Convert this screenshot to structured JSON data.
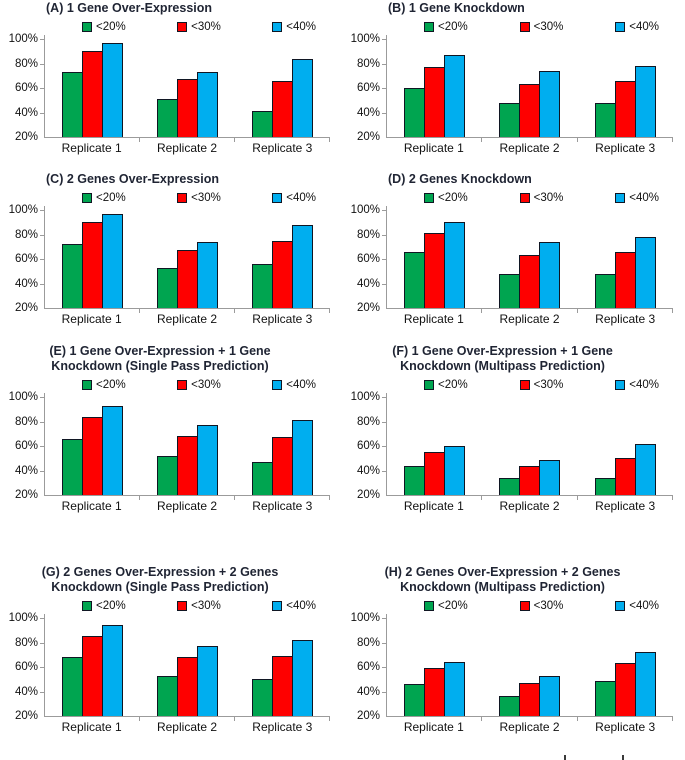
{
  "figure": {
    "background": "#ffffff",
    "axis_color": "#9b9b9b",
    "bar_border_color": "#101623",
    "title_color": "#1f2433",
    "text_color": "#111111"
  },
  "chart_data": [
    {
      "type": "bar",
      "id": "A",
      "title_lines": [
        "(A) 1 Gene Over-Expression"
      ],
      "categories": [
        "Replicate 1",
        "Replicate 2",
        "Replicate 3"
      ],
      "series": [
        {
          "name": "<20%",
          "color": "#00A550",
          "values": [
            73,
            51,
            41
          ]
        },
        {
          "name": "<30%",
          "color": "#FE0000",
          "values": [
            90,
            67,
            66
          ]
        },
        {
          "name": "<40%",
          "color": "#00AEEF",
          "values": [
            97,
            73,
            84
          ]
        }
      ],
      "ylim": [
        20,
        100
      ],
      "yticks": [
        "100%",
        "80%",
        "60%",
        "40%",
        "20%"
      ],
      "legend_position": "top",
      "grid": false
    },
    {
      "type": "bar",
      "id": "B",
      "title_lines": [
        "(B) 1 Gene Knockdown"
      ],
      "categories": [
        "Replicate 1",
        "Replicate 2",
        "Replicate 3"
      ],
      "series": [
        {
          "name": "<20%",
          "color": "#00A550",
          "values": [
            60,
            48,
            48
          ]
        },
        {
          "name": "<30%",
          "color": "#FE0000",
          "values": [
            77,
            63,
            66
          ]
        },
        {
          "name": "<40%",
          "color": "#00AEEF",
          "values": [
            87,
            74,
            78
          ]
        }
      ],
      "ylim": [
        20,
        100
      ],
      "yticks": [
        "100%",
        "80%",
        "60%",
        "40%",
        "20%"
      ],
      "legend_position": "top",
      "grid": false
    },
    {
      "type": "bar",
      "id": "C",
      "title_lines": [
        "(C) 2 Genes Over-Expression"
      ],
      "categories": [
        "Replicate 1",
        "Replicate 2",
        "Replicate 3"
      ],
      "series": [
        {
          "name": "<20%",
          "color": "#00A550",
          "values": [
            72,
            53,
            56
          ]
        },
        {
          "name": "<30%",
          "color": "#FE0000",
          "values": [
            90,
            67,
            75
          ]
        },
        {
          "name": "<40%",
          "color": "#00AEEF",
          "values": [
            97,
            74,
            88
          ]
        }
      ],
      "ylim": [
        20,
        100
      ],
      "yticks": [
        "100%",
        "80%",
        "60%",
        "40%",
        "20%"
      ],
      "legend_position": "top",
      "grid": false
    },
    {
      "type": "bar",
      "id": "D",
      "title_lines": [
        "(D) 2 Genes Knockdown"
      ],
      "categories": [
        "Replicate 1",
        "Replicate 2",
        "Replicate 3"
      ],
      "series": [
        {
          "name": "<20%",
          "color": "#00A550",
          "values": [
            66,
            48,
            48
          ]
        },
        {
          "name": "<30%",
          "color": "#FE0000",
          "values": [
            81,
            63,
            66
          ]
        },
        {
          "name": "<40%",
          "color": "#00AEEF",
          "values": [
            90,
            74,
            78
          ]
        }
      ],
      "ylim": [
        20,
        100
      ],
      "yticks": [
        "100%",
        "80%",
        "60%",
        "40%",
        "20%"
      ],
      "legend_position": "top",
      "grid": false
    },
    {
      "type": "bar",
      "id": "E",
      "title_lines": [
        "(E) 1 Gene Over-Expression + 1 Gene",
        "Knockdown (Single Pass Prediction)"
      ],
      "categories": [
        "Replicate 1",
        "Replicate 2",
        "Replicate 3"
      ],
      "series": [
        {
          "name": "<20%",
          "color": "#00A550",
          "values": [
            66,
            52,
            47
          ]
        },
        {
          "name": "<30%",
          "color": "#FE0000",
          "values": [
            84,
            68,
            67
          ]
        },
        {
          "name": "<40%",
          "color": "#00AEEF",
          "values": [
            93,
            77,
            81
          ]
        }
      ],
      "ylim": [
        20,
        100
      ],
      "yticks": [
        "100%",
        "80%",
        "60%",
        "40%",
        "20%"
      ],
      "legend_position": "top",
      "grid": false
    },
    {
      "type": "bar",
      "id": "F",
      "title_lines": [
        "(F) 1 Gene Over-Expression + 1 Gene",
        "Knockdown (Multipass Prediction)"
      ],
      "categories": [
        "Replicate 1",
        "Replicate 2",
        "Replicate 3"
      ],
      "series": [
        {
          "name": "<20%",
          "color": "#00A550",
          "values": [
            44,
            34,
            34
          ]
        },
        {
          "name": "<30%",
          "color": "#FE0000",
          "values": [
            55,
            44,
            50
          ]
        },
        {
          "name": "<40%",
          "color": "#00AEEF",
          "values": [
            60,
            49,
            62
          ]
        }
      ],
      "ylim": [
        20,
        100
      ],
      "yticks": [
        "100%",
        "80%",
        "60%",
        "40%",
        "20%"
      ],
      "legend_position": "top",
      "grid": false
    },
    {
      "type": "bar",
      "id": "G",
      "title_lines": [
        "(G) 2 Genes Over-Expression + 2 Genes",
        "Knockdown (Single Pass Prediction)"
      ],
      "categories": [
        "Replicate 1",
        "Replicate 2",
        "Replicate 3"
      ],
      "series": [
        {
          "name": "<20%",
          "color": "#00A550",
          "values": [
            68,
            53,
            50
          ]
        },
        {
          "name": "<30%",
          "color": "#FE0000",
          "values": [
            85,
            68,
            69
          ]
        },
        {
          "name": "<40%",
          "color": "#00AEEF",
          "values": [
            94,
            77,
            82
          ]
        }
      ],
      "ylim": [
        20,
        100
      ],
      "yticks": [
        "100%",
        "80%",
        "60%",
        "40%",
        "20%"
      ],
      "legend_position": "top",
      "grid": false
    },
    {
      "type": "bar",
      "id": "H",
      "title_lines": [
        "(H) 2 Genes Over-Expression + 2 Genes",
        "Knockdown (Multipass Prediction)"
      ],
      "categories": [
        "Replicate 1",
        "Replicate 2",
        "Replicate 3"
      ],
      "series": [
        {
          "name": "<20%",
          "color": "#00A550",
          "values": [
            46,
            36,
            49
          ]
        },
        {
          "name": "<30%",
          "color": "#FE0000",
          "values": [
            59,
            47,
            63
          ]
        },
        {
          "name": "<40%",
          "color": "#00AEEF",
          "values": [
            64,
            53,
            72
          ]
        }
      ],
      "ylim": [
        20,
        100
      ],
      "yticks": [
        "100%",
        "80%",
        "60%",
        "40%",
        "20%"
      ],
      "legend_position": "top",
      "grid": false
    }
  ]
}
